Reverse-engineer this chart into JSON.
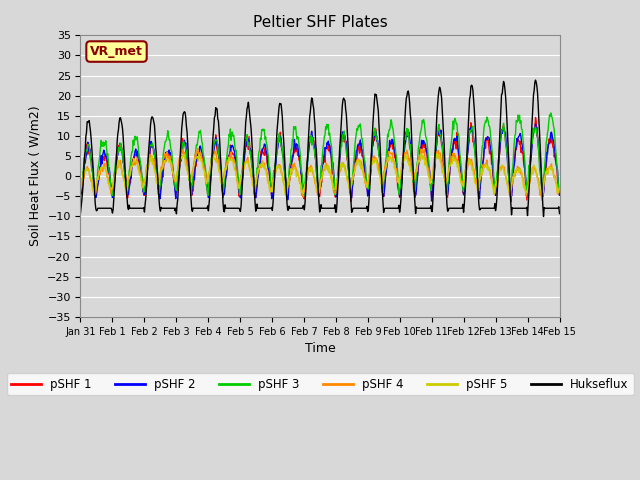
{
  "title": "Peltier SHF Plates",
  "xlabel": "Time",
  "ylabel": "Soil Heat Flux ( W/m2)",
  "ylim": [
    -35,
    35
  ],
  "yticks": [
    -35,
    -30,
    -25,
    -20,
    -15,
    -10,
    -5,
    0,
    5,
    10,
    15,
    20,
    25,
    30,
    35
  ],
  "series_colors": {
    "pSHF 1": "#ff0000",
    "pSHF 2": "#0000ff",
    "pSHF 3": "#00cc00",
    "pSHF 4": "#ff8800",
    "pSHF 5": "#cccc00",
    "Hukseflux": "#000000"
  },
  "annotation_text": "VR_met",
  "annotation_color": "#8b0000",
  "annotation_bg": "#ffff99",
  "bg_color": "#d8d8d8",
  "n_points": 720,
  "start_day": 0.0,
  "end_day": 15.0
}
